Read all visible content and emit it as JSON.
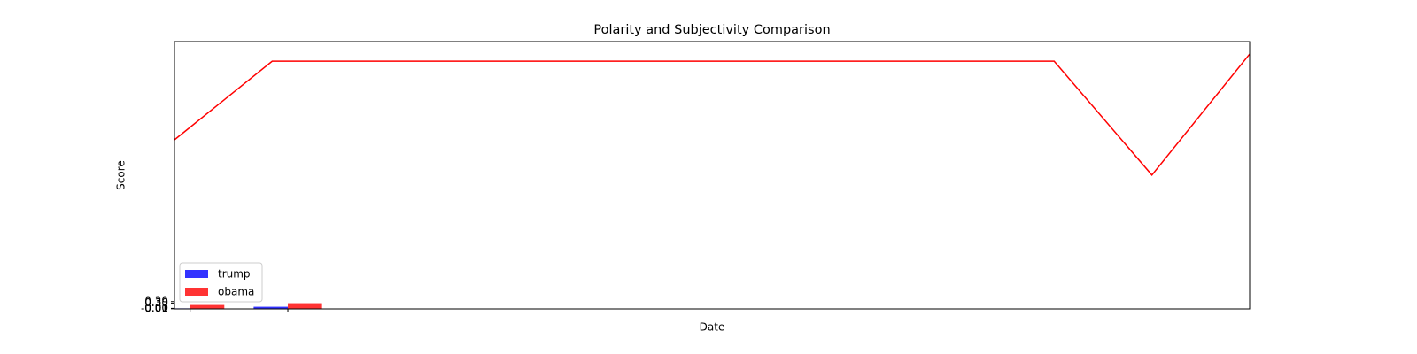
{
  "chart_data": {
    "type": "bar",
    "title": "Polarity and Subjectivity Comparison",
    "x_label": "Date",
    "y_label": "Score",
    "xlim": [
      -0.16,
      10.84
    ],
    "ylim": [
      -0.02,
      15
    ],
    "xticks": [
      0,
      1
    ],
    "yticks": [
      {
        "value": -0.01,
        "label": "-0.01"
      },
      {
        "value": 0,
        "label": "0.00"
      },
      {
        "value": 0.01,
        "label": "0.01"
      },
      {
        "value": 0.3,
        "label": "0.30"
      },
      {
        "value": 0.39,
        "label": "0.39"
      }
    ],
    "x": [
      0,
      1
    ],
    "series": [
      {
        "name": "trump",
        "color": "#0000ff",
        "values": [
          0.01,
          0.1
        ]
      },
      {
        "name": "obama",
        "color": "#ff0000",
        "values": [
          0.2,
          0.3
        ]
      }
    ],
    "legend": "lower left",
    "overlay": {
      "type": "line",
      "color": "#ff0000",
      "x": [
        -0.16,
        0.84,
        1.84,
        2.84,
        3.84,
        4.84,
        5.84,
        6.84,
        7.84,
        8.84,
        9.84,
        10.84
      ],
      "values": [
        9.48,
        13.9,
        13.9,
        13.9,
        13.9,
        13.9,
        13.9,
        13.9,
        13.9,
        13.9,
        7.5,
        14.3
      ]
    }
  }
}
